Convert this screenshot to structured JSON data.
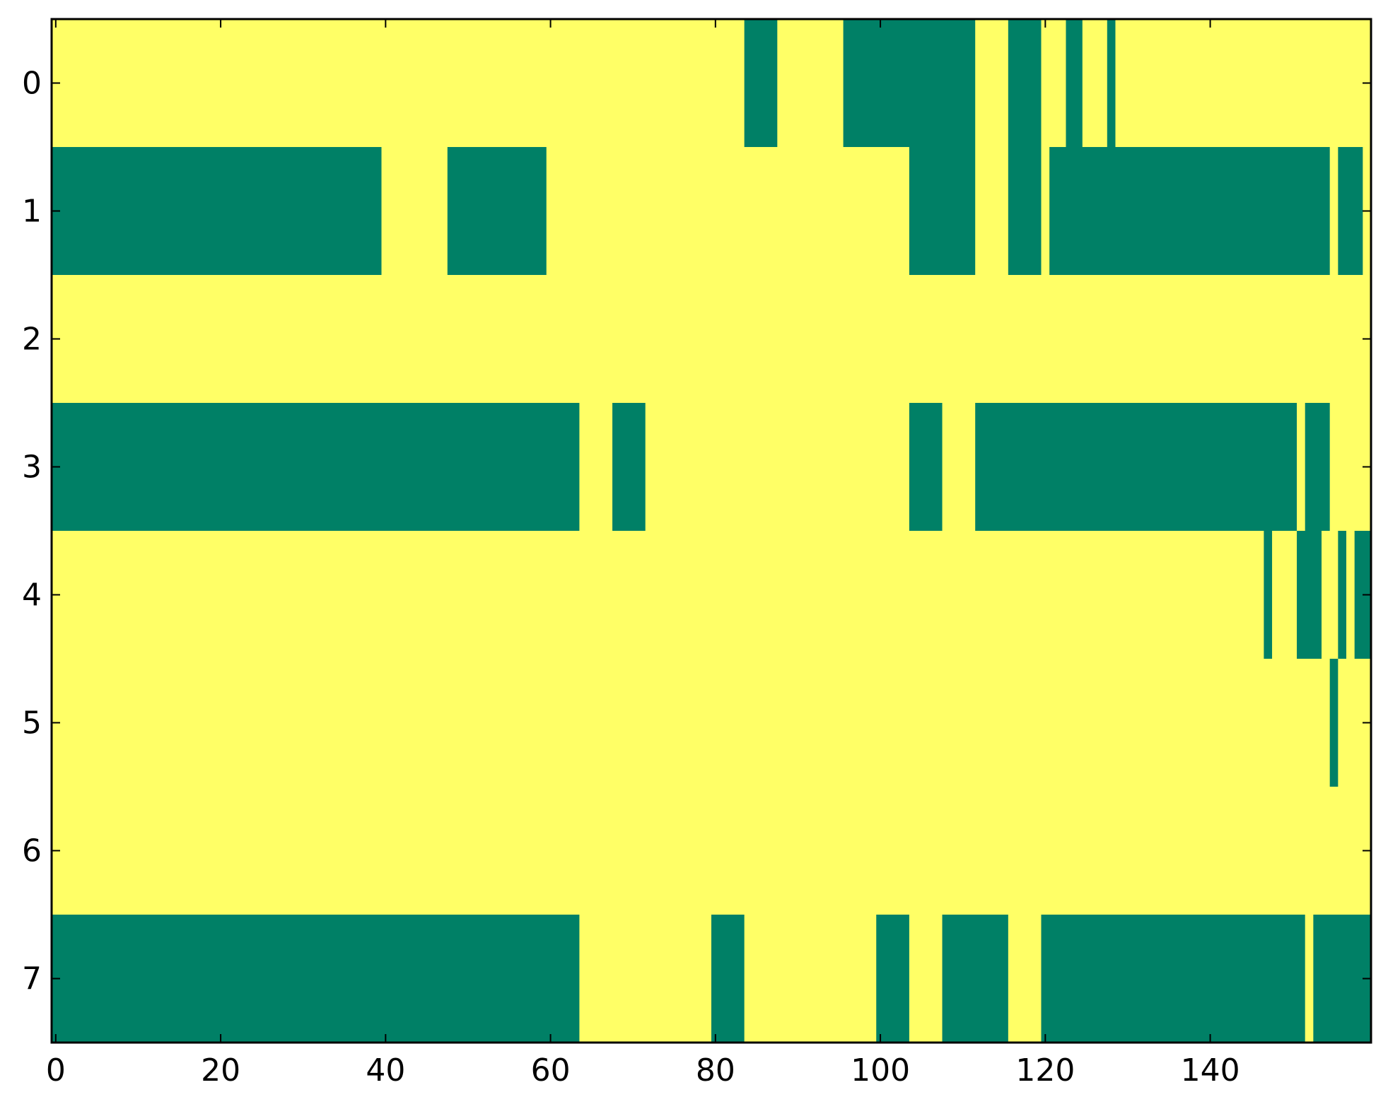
{
  "chart_data": {
    "type": "heatmap",
    "title": "",
    "xlabel": "",
    "ylabel": "",
    "xlim": [
      -0.5,
      159.5
    ],
    "ylim": [
      7.5,
      -0.5
    ],
    "x_ticks": [
      0,
      20,
      40,
      60,
      80,
      100,
      120,
      140
    ],
    "x_tick_labels": [
      "0",
      "20",
      "40",
      "60",
      "80",
      "100",
      "120",
      "140"
    ],
    "y_ticks": [
      0,
      1,
      2,
      3,
      4,
      5,
      6,
      7
    ],
    "y_tick_labels": [
      "0",
      "1",
      "2",
      "3",
      "4",
      "5",
      "6",
      "7"
    ],
    "grid": false,
    "legend": "none",
    "colors": {
      "off": "#ffff66",
      "on": "#008066"
    },
    "on_runs": [
      {
        "row": 0,
        "x_start": 84,
        "x_end": 87
      },
      {
        "row": 0,
        "x_start": 96,
        "x_end": 111
      },
      {
        "row": 0,
        "x_start": 116,
        "x_end": 119
      },
      {
        "row": 0,
        "x_start": 123,
        "x_end": 124
      },
      {
        "row": 0,
        "x_start": 128,
        "x_end": 128
      },
      {
        "row": 1,
        "x_start": 0,
        "x_end": 39
      },
      {
        "row": 1,
        "x_start": 48,
        "x_end": 59
      },
      {
        "row": 1,
        "x_start": 104,
        "x_end": 111
      },
      {
        "row": 1,
        "x_start": 116,
        "x_end": 119
      },
      {
        "row": 1,
        "x_start": 121,
        "x_end": 154
      },
      {
        "row": 1,
        "x_start": 156,
        "x_end": 158
      },
      {
        "row": 3,
        "x_start": 0,
        "x_end": 63
      },
      {
        "row": 3,
        "x_start": 68,
        "x_end": 71
      },
      {
        "row": 3,
        "x_start": 104,
        "x_end": 107
      },
      {
        "row": 3,
        "x_start": 112,
        "x_end": 150
      },
      {
        "row": 3,
        "x_start": 152,
        "x_end": 154
      },
      {
        "row": 4,
        "x_start": 147,
        "x_end": 147
      },
      {
        "row": 4,
        "x_start": 151,
        "x_end": 153
      },
      {
        "row": 4,
        "x_start": 156,
        "x_end": 156
      },
      {
        "row": 4,
        "x_start": 158,
        "x_end": 159
      },
      {
        "row": 5,
        "x_start": 155,
        "x_end": 155
      },
      {
        "row": 7,
        "x_start": 0,
        "x_end": 63
      },
      {
        "row": 7,
        "x_start": 80,
        "x_end": 83
      },
      {
        "row": 7,
        "x_start": 100,
        "x_end": 103
      },
      {
        "row": 7,
        "x_start": 108,
        "x_end": 115
      },
      {
        "row": 7,
        "x_start": 120,
        "x_end": 151
      },
      {
        "row": 7,
        "x_start": 153,
        "x_end": 159
      }
    ]
  }
}
